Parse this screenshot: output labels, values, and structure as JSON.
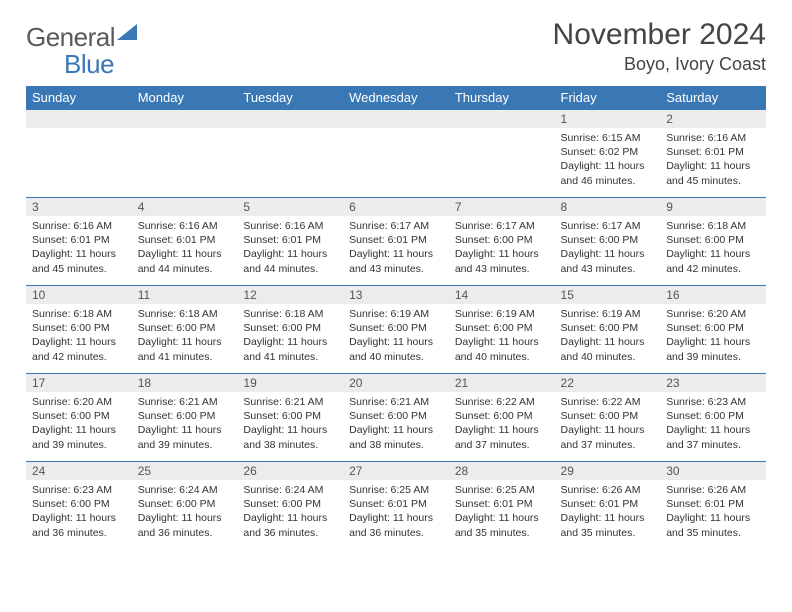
{
  "logo": {
    "word1": "General",
    "word2": "Blue"
  },
  "title": "November 2024",
  "location": "Boyo, Ivory Coast",
  "colors": {
    "header_bg": "#3a78b5",
    "header_fg": "#ffffff",
    "daynum_bg": "#ececec",
    "row_divider": "#3a78b5",
    "page_bg": "#ffffff",
    "text": "#333333"
  },
  "daysOfWeek": [
    "Sunday",
    "Monday",
    "Tuesday",
    "Wednesday",
    "Thursday",
    "Friday",
    "Saturday"
  ],
  "weeks": [
    [
      null,
      null,
      null,
      null,
      null,
      {
        "n": "1",
        "sunrise": "6:15 AM",
        "sunset": "6:02 PM",
        "daylight": "11 hours and 46 minutes."
      },
      {
        "n": "2",
        "sunrise": "6:16 AM",
        "sunset": "6:01 PM",
        "daylight": "11 hours and 45 minutes."
      }
    ],
    [
      {
        "n": "3",
        "sunrise": "6:16 AM",
        "sunset": "6:01 PM",
        "daylight": "11 hours and 45 minutes."
      },
      {
        "n": "4",
        "sunrise": "6:16 AM",
        "sunset": "6:01 PM",
        "daylight": "11 hours and 44 minutes."
      },
      {
        "n": "5",
        "sunrise": "6:16 AM",
        "sunset": "6:01 PM",
        "daylight": "11 hours and 44 minutes."
      },
      {
        "n": "6",
        "sunrise": "6:17 AM",
        "sunset": "6:01 PM",
        "daylight": "11 hours and 43 minutes."
      },
      {
        "n": "7",
        "sunrise": "6:17 AM",
        "sunset": "6:00 PM",
        "daylight": "11 hours and 43 minutes."
      },
      {
        "n": "8",
        "sunrise": "6:17 AM",
        "sunset": "6:00 PM",
        "daylight": "11 hours and 43 minutes."
      },
      {
        "n": "9",
        "sunrise": "6:18 AM",
        "sunset": "6:00 PM",
        "daylight": "11 hours and 42 minutes."
      }
    ],
    [
      {
        "n": "10",
        "sunrise": "6:18 AM",
        "sunset": "6:00 PM",
        "daylight": "11 hours and 42 minutes."
      },
      {
        "n": "11",
        "sunrise": "6:18 AM",
        "sunset": "6:00 PM",
        "daylight": "11 hours and 41 minutes."
      },
      {
        "n": "12",
        "sunrise": "6:18 AM",
        "sunset": "6:00 PM",
        "daylight": "11 hours and 41 minutes."
      },
      {
        "n": "13",
        "sunrise": "6:19 AM",
        "sunset": "6:00 PM",
        "daylight": "11 hours and 40 minutes."
      },
      {
        "n": "14",
        "sunrise": "6:19 AM",
        "sunset": "6:00 PM",
        "daylight": "11 hours and 40 minutes."
      },
      {
        "n": "15",
        "sunrise": "6:19 AM",
        "sunset": "6:00 PM",
        "daylight": "11 hours and 40 minutes."
      },
      {
        "n": "16",
        "sunrise": "6:20 AM",
        "sunset": "6:00 PM",
        "daylight": "11 hours and 39 minutes."
      }
    ],
    [
      {
        "n": "17",
        "sunrise": "6:20 AM",
        "sunset": "6:00 PM",
        "daylight": "11 hours and 39 minutes."
      },
      {
        "n": "18",
        "sunrise": "6:21 AM",
        "sunset": "6:00 PM",
        "daylight": "11 hours and 39 minutes."
      },
      {
        "n": "19",
        "sunrise": "6:21 AM",
        "sunset": "6:00 PM",
        "daylight": "11 hours and 38 minutes."
      },
      {
        "n": "20",
        "sunrise": "6:21 AM",
        "sunset": "6:00 PM",
        "daylight": "11 hours and 38 minutes."
      },
      {
        "n": "21",
        "sunrise": "6:22 AM",
        "sunset": "6:00 PM",
        "daylight": "11 hours and 37 minutes."
      },
      {
        "n": "22",
        "sunrise": "6:22 AM",
        "sunset": "6:00 PM",
        "daylight": "11 hours and 37 minutes."
      },
      {
        "n": "23",
        "sunrise": "6:23 AM",
        "sunset": "6:00 PM",
        "daylight": "11 hours and 37 minutes."
      }
    ],
    [
      {
        "n": "24",
        "sunrise": "6:23 AM",
        "sunset": "6:00 PM",
        "daylight": "11 hours and 36 minutes."
      },
      {
        "n": "25",
        "sunrise": "6:24 AM",
        "sunset": "6:00 PM",
        "daylight": "11 hours and 36 minutes."
      },
      {
        "n": "26",
        "sunrise": "6:24 AM",
        "sunset": "6:00 PM",
        "daylight": "11 hours and 36 minutes."
      },
      {
        "n": "27",
        "sunrise": "6:25 AM",
        "sunset": "6:01 PM",
        "daylight": "11 hours and 36 minutes."
      },
      {
        "n": "28",
        "sunrise": "6:25 AM",
        "sunset": "6:01 PM",
        "daylight": "11 hours and 35 minutes."
      },
      {
        "n": "29",
        "sunrise": "6:26 AM",
        "sunset": "6:01 PM",
        "daylight": "11 hours and 35 minutes."
      },
      {
        "n": "30",
        "sunrise": "6:26 AM",
        "sunset": "6:01 PM",
        "daylight": "11 hours and 35 minutes."
      }
    ]
  ],
  "labels": {
    "sunrise": "Sunrise: ",
    "sunset": "Sunset: ",
    "daylight": "Daylight: "
  }
}
